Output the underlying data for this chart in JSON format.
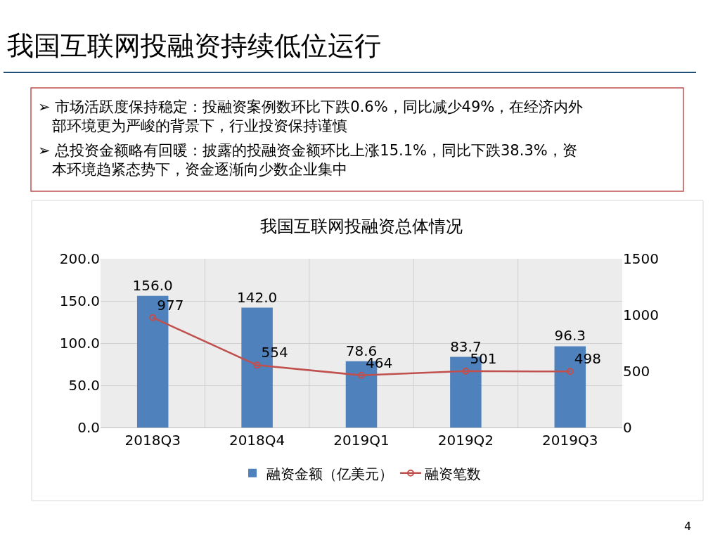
{
  "chart_data": {
    "type": "bar",
    "title": "我国互联网投融资持续低位运行",
    "subtitle": "我国互联网投融资总体情况",
    "annotations": [
      "➢ 市场活跃度保持稳定：投融资案例数环比下跌0.6%，同比减少49%，在经济内外部环境更为严峻的背景下，行业投资保持谨慎",
      "➢ 总投资金额略有回暖：披露的投融资金额环比上涨15.1%，同比下跌38.3%，资本环境趋紧态势下，资金逐渐向少数企业集中",
      "4"
    ],
    "categories": [
      "2018Q3",
      "2018Q4",
      "2019Q1",
      "2019Q2",
      "2019Q3"
    ],
    "series": [
      {
        "name": "融资金额（亿美元）",
        "color": "#4f81bd",
        "values": [
          156,
          142,
          78.6,
          83.7,
          96.3
        ],
        "value_labels": [
          "156.0",
          "142.0",
          "78.6",
          "83.7",
          "96.3"
        ]
      },
      {
        "name": "融资笔数",
        "type": "line",
        "axis": "y2",
        "color": "#c0504d",
        "marker": "circle",
        "values": [
          977,
          554,
          464,
          501,
          498
        ],
        "value_labels": [
          "977",
          "554",
          "464",
          "501",
          "498"
        ]
      }
    ],
    "ylim": [
      0,
      200
    ],
    "yticks": [
      {
        "value": 0,
        "label": "0.0"
      },
      {
        "value": 50,
        "label": "50.0"
      },
      {
        "value": 100,
        "label": "100.0"
      },
      {
        "value": 150,
        "label": "150.0"
      },
      {
        "value": 200,
        "label": "200.0"
      }
    ],
    "y2lim": [
      0,
      1500
    ],
    "y2ticks": [
      0,
      500,
      1000,
      1500
    ],
    "grid": true,
    "legend": "bottom"
  }
}
